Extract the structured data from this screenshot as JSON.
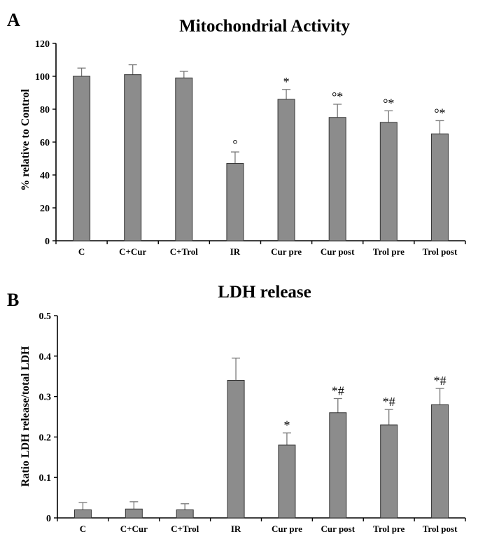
{
  "chart_data": [
    {
      "panel": "A",
      "type": "bar",
      "title": "Mitochondrial Activity",
      "xlabel": "",
      "ylabel": "% relative to Control",
      "ylim": [
        0,
        120
      ],
      "yticks": [
        0,
        20,
        40,
        60,
        80,
        100,
        120
      ],
      "ytick_labels": [
        "0",
        "20",
        "40",
        "60",
        "80",
        "100",
        "120"
      ],
      "grid": false,
      "categories": [
        "C",
        "C+Cur",
        "C+Trol",
        "IR",
        "Cur pre",
        "Cur post",
        "Trol pre",
        "Trol post"
      ],
      "values": [
        100,
        101,
        99,
        47,
        86,
        75,
        72,
        65
      ],
      "errors": [
        5,
        6,
        4,
        7,
        6,
        8,
        7,
        8
      ],
      "annotations": [
        "",
        "",
        "",
        "°",
        "*",
        "°*",
        "°*",
        "°*"
      ]
    },
    {
      "panel": "B",
      "type": "bar",
      "title": "LDH release",
      "xlabel": "",
      "ylabel": "Ratio LDH release/total LDH",
      "ylim": [
        0,
        0.5
      ],
      "yticks": [
        0,
        0.1,
        0.2,
        0.3,
        0.4,
        0.5
      ],
      "ytick_labels": [
        "0",
        "0.1",
        "0.2",
        "0.3",
        "0.4",
        "0.5"
      ],
      "grid": false,
      "categories": [
        "C",
        "C+Cur",
        "C+Trol",
        "IR",
        "Cur pre",
        "Cur post",
        "Trol pre",
        "Trol post"
      ],
      "values": [
        0.02,
        0.022,
        0.02,
        0.34,
        0.18,
        0.26,
        0.23,
        0.28
      ],
      "errors": [
        0.018,
        0.018,
        0.015,
        0.055,
        0.03,
        0.035,
        0.038,
        0.04
      ],
      "annotations": [
        "",
        "",
        "",
        "",
        "*",
        "*#",
        "*#",
        "*#"
      ]
    }
  ],
  "colors": {
    "bar": "#8c8c8c",
    "bar_edge": "#333333",
    "error_bar": "#777777",
    "axis": "#000000"
  }
}
